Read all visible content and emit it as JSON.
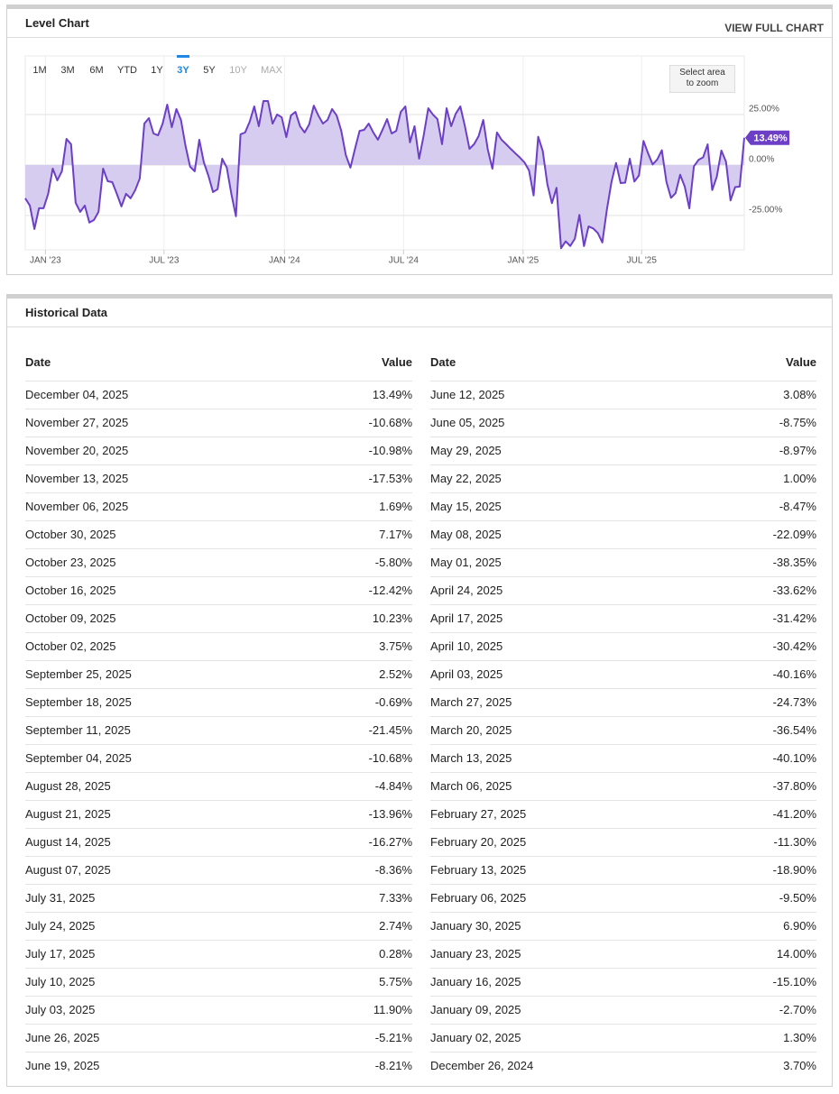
{
  "header": {
    "title": "Level Chart",
    "link": "VIEW FULL CHART"
  },
  "ranges": [
    {
      "label": "1M"
    },
    {
      "label": "3M"
    },
    {
      "label": "6M"
    },
    {
      "label": "YTD"
    },
    {
      "label": "1Y"
    },
    {
      "label": "3Y",
      "selected": true
    },
    {
      "label": "5Y"
    },
    {
      "label": "10Y",
      "disabled": true
    },
    {
      "label": "MAX",
      "disabled": true
    }
  ],
  "zoom_hint": "Select area to zoom",
  "chart_data": {
    "type": "line",
    "color": "#6c3fc6",
    "fill_color": "#d6ccf0",
    "xlim": [
      0,
      157
    ],
    "ylim": [
      -42,
      54
    ],
    "yticks": [
      {
        "value": 25,
        "label": "25.00%"
      },
      {
        "value": 0,
        "label": "0.00%"
      },
      {
        "value": -25,
        "label": "-25.00%"
      }
    ],
    "xticks": [
      {
        "value": 4.4,
        "label": "JAN '23"
      },
      {
        "value": 30.3,
        "label": "JUL '23"
      },
      {
        "value": 56.6,
        "label": "JAN '24"
      },
      {
        "value": 82.6,
        "label": "JUL '24"
      },
      {
        "value": 108.7,
        "label": "JAN '25"
      },
      {
        "value": 134.6,
        "label": "JUL '25"
      }
    ],
    "grid": true,
    "values": [
      -16.5,
      -20.1,
      -31.7,
      -21.4,
      -21.4,
      -14.3,
      -1.8,
      -7.6,
      -3.1,
      12.9,
      10.3,
      -18.7,
      -23.2,
      -20.1,
      -28.5,
      -27.2,
      -23.2,
      -1.8,
      -8.0,
      -8.5,
      -14.3,
      -20.5,
      -14.3,
      -16.5,
      -12.5,
      -6.7,
      20.5,
      23.2,
      15.6,
      14.7,
      20.5,
      29.9,
      18.7,
      27.7,
      22.3,
      9.4,
      -0.9,
      -3.1,
      12.5,
      1.3,
      -5.4,
      -13.4,
      -12.0,
      3.1,
      -1.3,
      -14.3,
      -25.4,
      15.2,
      16.1,
      21.4,
      29.0,
      19.2,
      31.7,
      31.7,
      20.5,
      25.0,
      23.6,
      13.8,
      24.5,
      26.3,
      19.2,
      16.1,
      20.1,
      29.4,
      24.5,
      20.5,
      22.3,
      27.7,
      24.5,
      16.9,
      4.9,
      -1.3,
      8.0,
      16.9,
      17.4,
      20.5,
      16.1,
      12.5,
      17.4,
      22.7,
      15.6,
      16.9,
      26.3,
      29.0,
      11.2,
      19.2,
      3.1,
      14.7,
      28.1,
      25.0,
      22.7,
      10.3,
      28.1,
      19.2,
      25.4,
      29.0,
      19.2,
      8.0,
      10.3,
      14.3,
      22.3,
      7.6,
      -1.8,
      16.1,
      12.5,
      10.3,
      8.0,
      5.8,
      3.7,
      1.3,
      -2.7,
      -15.1,
      14.0,
      6.9,
      -9.5,
      -18.9,
      -11.3,
      -41.2,
      -37.8,
      -40.1,
      -36.54,
      -24.73,
      -40.16,
      -30.42,
      -31.42,
      -33.62,
      -38.35,
      -22.09,
      -8.47,
      1.0,
      -8.97,
      -8.75,
      3.08,
      -8.21,
      -5.21,
      11.9,
      5.75,
      0.28,
      2.74,
      7.33,
      -8.36,
      -16.27,
      -13.96,
      -4.84,
      -10.68,
      -21.45,
      -0.69,
      2.52,
      3.75,
      10.23,
      -12.42,
      -5.8,
      7.17,
      1.69,
      -17.53,
      -10.98,
      -10.68,
      13.49
    ]
  },
  "historical": {
    "title": "Historical Data",
    "columns": [
      "Date",
      "Value"
    ],
    "rows": [
      [
        "December 04, 2025",
        "13.49%"
      ],
      [
        "November 27, 2025",
        "-10.68%"
      ],
      [
        "November 20, 2025",
        "-10.98%"
      ],
      [
        "November 13, 2025",
        "-17.53%"
      ],
      [
        "November 06, 2025",
        "1.69%"
      ],
      [
        "October 30, 2025",
        "7.17%"
      ],
      [
        "October 23, 2025",
        "-5.80%"
      ],
      [
        "October 16, 2025",
        "-12.42%"
      ],
      [
        "October 09, 2025",
        "10.23%"
      ],
      [
        "October 02, 2025",
        "3.75%"
      ],
      [
        "September 25, 2025",
        "2.52%"
      ],
      [
        "September 18, 2025",
        "-0.69%"
      ],
      [
        "September 11, 2025",
        "-21.45%"
      ],
      [
        "September 04, 2025",
        "-10.68%"
      ],
      [
        "August 28, 2025",
        "-4.84%"
      ],
      [
        "August 21, 2025",
        "-13.96%"
      ],
      [
        "August 14, 2025",
        "-16.27%"
      ],
      [
        "August 07, 2025",
        "-8.36%"
      ],
      [
        "July 31, 2025",
        "7.33%"
      ],
      [
        "July 24, 2025",
        "2.74%"
      ],
      [
        "July 17, 2025",
        "0.28%"
      ],
      [
        "July 10, 2025",
        "5.75%"
      ],
      [
        "July 03, 2025",
        "11.90%"
      ],
      [
        "June 26, 2025",
        "-5.21%"
      ],
      [
        "June 19, 2025",
        "-8.21%"
      ],
      [
        "June 12, 2025",
        "3.08%"
      ],
      [
        "June 05, 2025",
        "-8.75%"
      ],
      [
        "May 29, 2025",
        "-8.97%"
      ],
      [
        "May 22, 2025",
        "1.00%"
      ],
      [
        "May 15, 2025",
        "-8.47%"
      ],
      [
        "May 08, 2025",
        "-22.09%"
      ],
      [
        "May 01, 2025",
        "-38.35%"
      ],
      [
        "April 24, 2025",
        "-33.62%"
      ],
      [
        "April 17, 2025",
        "-31.42%"
      ],
      [
        "April 10, 2025",
        "-30.42%"
      ],
      [
        "April 03, 2025",
        "-40.16%"
      ],
      [
        "March 27, 2025",
        "-24.73%"
      ],
      [
        "March 20, 2025",
        "-36.54%"
      ],
      [
        "March 13, 2025",
        "-40.10%"
      ],
      [
        "March 06, 2025",
        "-37.80%"
      ],
      [
        "February 27, 2025",
        "-41.20%"
      ],
      [
        "February 20, 2025",
        "-11.30%"
      ],
      [
        "February 13, 2025",
        "-18.90%"
      ],
      [
        "February 06, 2025",
        "-9.50%"
      ],
      [
        "January 30, 2025",
        "6.90%"
      ],
      [
        "January 23, 2025",
        "14.00%"
      ],
      [
        "January 16, 2025",
        "-15.10%"
      ],
      [
        "January 09, 2025",
        "-2.70%"
      ],
      [
        "January 02, 2025",
        "1.30%"
      ],
      [
        "December 26, 2024",
        "3.70%"
      ]
    ]
  }
}
